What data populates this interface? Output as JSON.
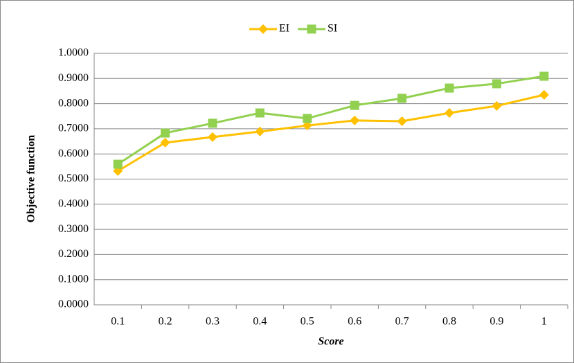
{
  "chart_data": {
    "type": "line",
    "x_label": "Score",
    "y_label": "Objective function",
    "categories": [
      "0.1",
      "0.2",
      "0.3",
      "0.4",
      "0.5",
      "0.6",
      "0.7",
      "0.8",
      "0.9",
      "1"
    ],
    "series": [
      {
        "name": "EI",
        "color": "#ffc000",
        "marker": "diamond",
        "values": [
          0.532,
          0.645,
          0.667,
          0.689,
          0.713,
          0.733,
          0.73,
          0.763,
          0.791,
          0.835
        ]
      },
      {
        "name": "SI",
        "color": "#92d050",
        "marker": "square",
        "values": [
          0.559,
          0.683,
          0.722,
          0.763,
          0.741,
          0.793,
          0.821,
          0.862,
          0.879,
          0.909
        ]
      }
    ],
    "ylim": [
      0,
      1
    ],
    "yticks": [
      {
        "value": 0,
        "label": "0.0000"
      },
      {
        "value": 0.1,
        "label": "0.1000"
      },
      {
        "value": 0.2,
        "label": "0.2000"
      },
      {
        "value": 0.3,
        "label": "0.3000"
      },
      {
        "value": 0.4,
        "label": "0.4000"
      },
      {
        "value": 0.5,
        "label": "0.5000"
      },
      {
        "value": 0.6,
        "label": "0.6000"
      },
      {
        "value": 0.7,
        "label": "0.7000"
      },
      {
        "value": 0.8,
        "label": "0.8000"
      },
      {
        "value": 0.9,
        "label": "0.9000"
      },
      {
        "value": 1,
        "label": "1.0000"
      }
    ],
    "grid": true,
    "legend": "top"
  }
}
